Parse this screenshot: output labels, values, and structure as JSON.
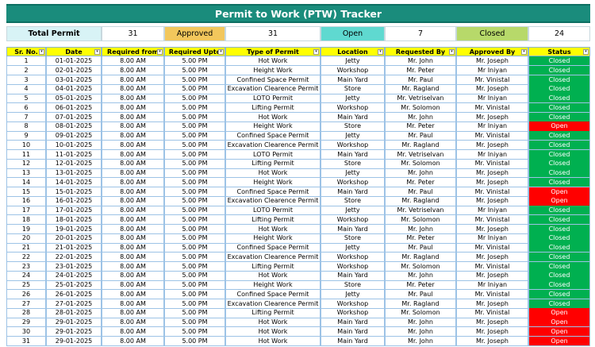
{
  "title": "Permit to Work (PTW) Tracker",
  "summary": [
    {
      "label": "Total Permit",
      "value": 31
    },
    {
      "label": "Approved",
      "value": 31
    },
    {
      "label": "Open",
      "value": 7
    },
    {
      "label": "Closed",
      "value": 24
    }
  ],
  "table": {
    "columns": [
      "Sr. No.",
      "Date",
      "Required from",
      "Required Upto",
      "Type of Permit",
      "Location",
      "Requested By",
      "Approved By",
      "Status"
    ],
    "rows": [
      [
        1,
        "01-01-2025",
        "8.00 AM",
        "5.00 PM",
        "Hot Work",
        "Jetty",
        "Mr. John",
        "Mr. Joseph",
        "Closed"
      ],
      [
        2,
        "02-01-2025",
        "8.00 AM",
        "5.00 PM",
        "Height Work",
        "Workshop",
        "Mr. Peter",
        "Mr Iniyan",
        "Closed"
      ],
      [
        3,
        "03-01-2025",
        "8.00 AM",
        "5.00 PM",
        "Confined Space Permit",
        "Main Yard",
        "Mr. Paul",
        "Mr. Vinistal",
        "Closed"
      ],
      [
        4,
        "04-01-2025",
        "8.00 AM",
        "5.00 PM",
        "Excavation Clearence Permit",
        "Store",
        "Mr. Ragland",
        "Mr. Joseph",
        "Closed"
      ],
      [
        5,
        "05-01-2025",
        "8.00 AM",
        "5.00 PM",
        "LOTO Permit",
        "Jetty",
        "Mr. Vetriselvan",
        "Mr Iniyan",
        "Closed"
      ],
      [
        6,
        "06-01-2025",
        "8.00 AM",
        "5.00 PM",
        "Lifting Permit",
        "Workshop",
        "Mr. Solomon",
        "Mr. Vinistal",
        "Closed"
      ],
      [
        7,
        "07-01-2025",
        "8.00 AM",
        "5.00 PM",
        "Hot Work",
        "Main Yard",
        "Mr. John",
        "Mr. Joseph",
        "Closed"
      ],
      [
        8,
        "08-01-2025",
        "8.00 AM",
        "5.00 PM",
        "Height Work",
        "Store",
        "Mr. Peter",
        "Mr Iniyan",
        "Open"
      ],
      [
        9,
        "09-01-2025",
        "8.00 AM",
        "5.00 PM",
        "Confined Space Permit",
        "Jetty",
        "Mr. Paul",
        "Mr. Vinistal",
        "Closed"
      ],
      [
        10,
        "10-01-2025",
        "8.00 AM",
        "5.00 PM",
        "Excavation Clearence Permit",
        "Workshop",
        "Mr. Ragland",
        "Mr. Joseph",
        "Closed"
      ],
      [
        11,
        "11-01-2025",
        "8.00 AM",
        "5.00 PM",
        "LOTO Permit",
        "Main Yard",
        "Mr. Vetriselvan",
        "Mr Iniyan",
        "Closed"
      ],
      [
        12,
        "12-01-2025",
        "8.00 AM",
        "5.00 PM",
        "Lifting Permit",
        "Store",
        "Mr. Solomon",
        "Mr. Vinistal",
        "Closed"
      ],
      [
        13,
        "13-01-2025",
        "8.00 AM",
        "5.00 PM",
        "Hot Work",
        "Jetty",
        "Mr. John",
        "Mr. Joseph",
        "Closed"
      ],
      [
        14,
        "14-01-2025",
        "8.00 AM",
        "5.00 PM",
        "Height Work",
        "Workshop",
        "Mr. Peter",
        "Mr. Joseph",
        "Closed"
      ],
      [
        15,
        "15-01-2025",
        "8.00 AM",
        "5.00 PM",
        "Confined Space Permit",
        "Main Yard",
        "Mr. Paul",
        "Mr. Vinistal",
        "Open"
      ],
      [
        16,
        "16-01-2025",
        "8.00 AM",
        "5.00 PM",
        "Excavation Clearence Permit",
        "Store",
        "Mr. Ragland",
        "Mr. Joseph",
        "Open"
      ],
      [
        17,
        "17-01-2025",
        "8.00 AM",
        "5.00 PM",
        "LOTO Permit",
        "Jetty",
        "Mr. Vetriselvan",
        "Mr Iniyan",
        "Closed"
      ],
      [
        18,
        "18-01-2025",
        "8.00 AM",
        "5.00 PM",
        "Lifting Permit",
        "Workshop",
        "Mr. Solomon",
        "Mr. Vinistal",
        "Closed"
      ],
      [
        19,
        "19-01-2025",
        "8.00 AM",
        "5.00 PM",
        "Hot Work",
        "Main Yard",
        "Mr. John",
        "Mr. Joseph",
        "Closed"
      ],
      [
        20,
        "20-01-2025",
        "8.00 AM",
        "5.00 PM",
        "Height Work",
        "Store",
        "Mr. Peter",
        "Mr Iniyan",
        "Closed"
      ],
      [
        21,
        "21-01-2025",
        "8.00 AM",
        "5.00 PM",
        "Confined Space Permit",
        "Jetty",
        "Mr. Paul",
        "Mr. Vinistal",
        "Closed"
      ],
      [
        22,
        "22-01-2025",
        "8.00 AM",
        "5.00 PM",
        "Excavation Clearence Permit",
        "Workshop",
        "Mr. Ragland",
        "Mr. Joseph",
        "Closed"
      ],
      [
        23,
        "23-01-2025",
        "8.00 AM",
        "5.00 PM",
        "Lifting Permit",
        "Workshop",
        "Mr. Solomon",
        "Mr. Vinistal",
        "Closed"
      ],
      [
        24,
        "24-01-2025",
        "8.00 AM",
        "5.00 PM",
        "Hot Work",
        "Main Yard",
        "Mr. John",
        "Mr. Joseph",
        "Closed"
      ],
      [
        25,
        "25-01-2025",
        "8.00 AM",
        "5.00 PM",
        "Height Work",
        "Store",
        "Mr. Peter",
        "Mr Iniyan",
        "Closed"
      ],
      [
        26,
        "26-01-2025",
        "8.00 AM",
        "5.00 PM",
        "Confined Space Permit",
        "Jetty",
        "Mr. Paul",
        "Mr. Vinistal",
        "Closed"
      ],
      [
        27,
        "27-01-2025",
        "8.00 AM",
        "5.00 PM",
        "Excavation Clearence Permit",
        "Workshop",
        "Mr. Ragland",
        "Mr. Joseph",
        "Closed"
      ],
      [
        28,
        "28-01-2025",
        "8.00 AM",
        "5.00 PM",
        "Lifting Permit",
        "Workshop",
        "Mr. Solomon",
        "Mr. Vinistal",
        "Open"
      ],
      [
        29,
        "29-01-2025",
        "8.00 AM",
        "5.00 PM",
        "Hot Work",
        "Main Yard",
        "Mr. John",
        "Mr. Joseph",
        "Open"
      ],
      [
        30,
        "29-01-2025",
        "8.00 AM",
        "5.00 PM",
        "Hot Work",
        "Main Yard",
        "Mr. John",
        "Mr. Joseph",
        "Open"
      ],
      [
        31,
        "29-01-2025",
        "8.00 AM",
        "5.00 PM",
        "Hot Work",
        "Main Yard",
        "Mr. John",
        "Mr. Joseph",
        "Open"
      ]
    ]
  }
}
